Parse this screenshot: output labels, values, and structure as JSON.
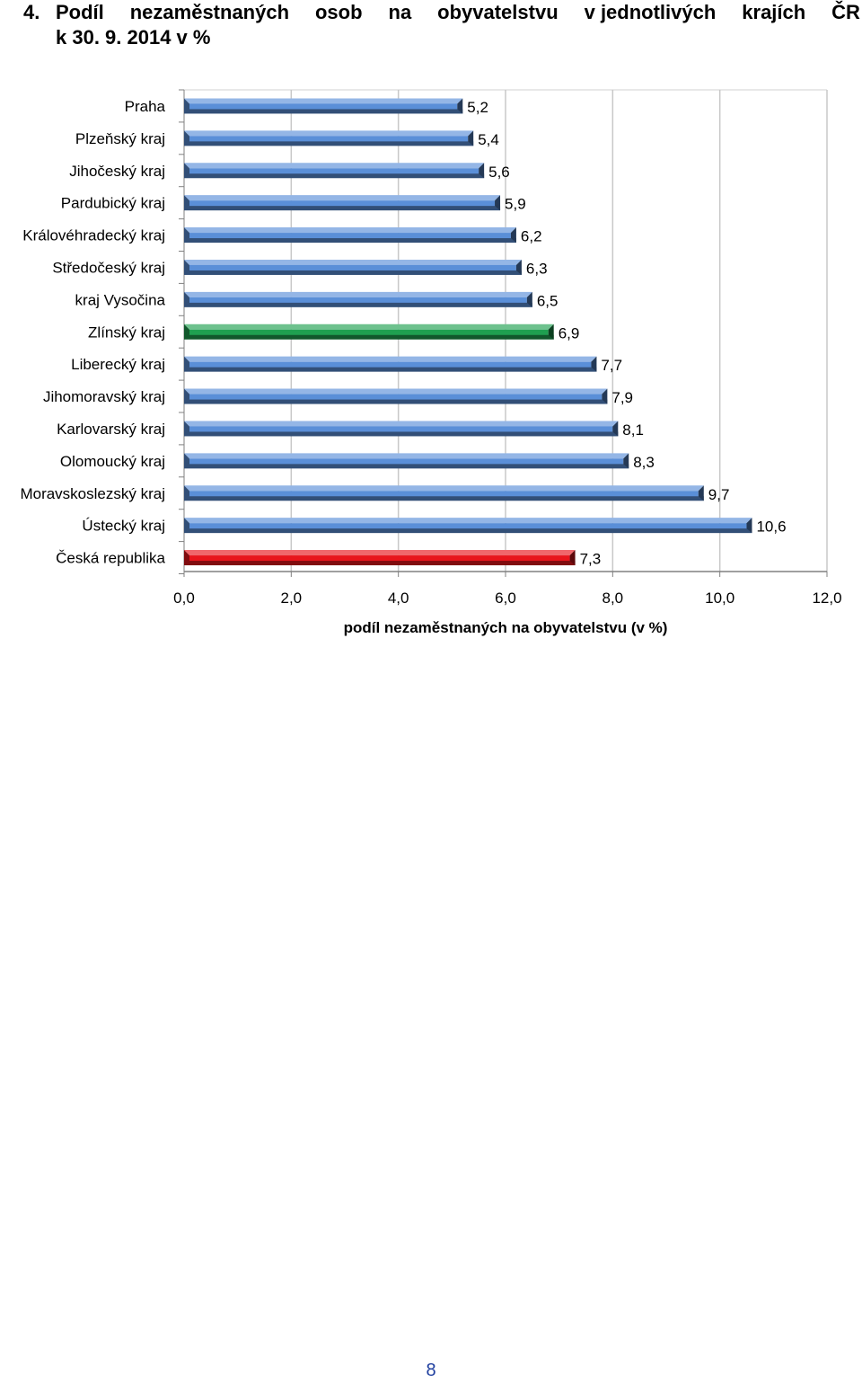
{
  "heading": {
    "number": "4.",
    "line1_words": [
      "Podíl",
      "nezaměstnaných",
      "osob",
      "na",
      "obyvatelstvu",
      "v jednotlivých",
      "krajích",
      "ČR"
    ],
    "line2": "k 30. 9. 2014 v %"
  },
  "chart_data": {
    "type": "bar",
    "orientation": "horizontal",
    "categories": [
      "Praha",
      "Plzeňský kraj",
      "Jihočeský kraj",
      "Pardubický kraj",
      "Královéhradecký kraj",
      "Středočeský kraj",
      "kraj Vysočina",
      "Zlínský kraj",
      "Liberecký kraj",
      "Jihomoravský kraj",
      "Karlovarský kraj",
      "Olomoucký kraj",
      "Moravskoslezský kraj",
      "Ústecký kraj",
      "Česká republika"
    ],
    "values": [
      5.2,
      5.4,
      5.6,
      5.9,
      6.2,
      6.3,
      6.5,
      6.9,
      7.7,
      7.9,
      8.1,
      8.3,
      9.7,
      10.6,
      7.3
    ],
    "value_labels": [
      "5,2",
      "5,4",
      "5,6",
      "5,9",
      "6,2",
      "6,3",
      "6,5",
      "6,9",
      "7,7",
      "7,9",
      "8,1",
      "8,3",
      "9,7",
      "10,6",
      "7,3"
    ],
    "bar_colors": [
      "#5a8fd8",
      "#5a8fd8",
      "#5a8fd8",
      "#5a8fd8",
      "#5a8fd8",
      "#5a8fd8",
      "#5a8fd8",
      "#1fa050",
      "#5a8fd8",
      "#5a8fd8",
      "#5a8fd8",
      "#5a8fd8",
      "#5a8fd8",
      "#5a8fd8",
      "#e8151b"
    ],
    "xlim": [
      0,
      12
    ],
    "xticks": [
      0,
      2,
      4,
      6,
      8,
      10,
      12
    ],
    "xtick_labels": [
      "0,0",
      "2,0",
      "4,0",
      "6,0",
      "8,0",
      "10,0",
      "12,0"
    ],
    "xlabel": "podíl nezaměstnaných na obyvatelstvu (v %)",
    "grid": "vertical",
    "legend": "none"
  },
  "page_number": "8"
}
